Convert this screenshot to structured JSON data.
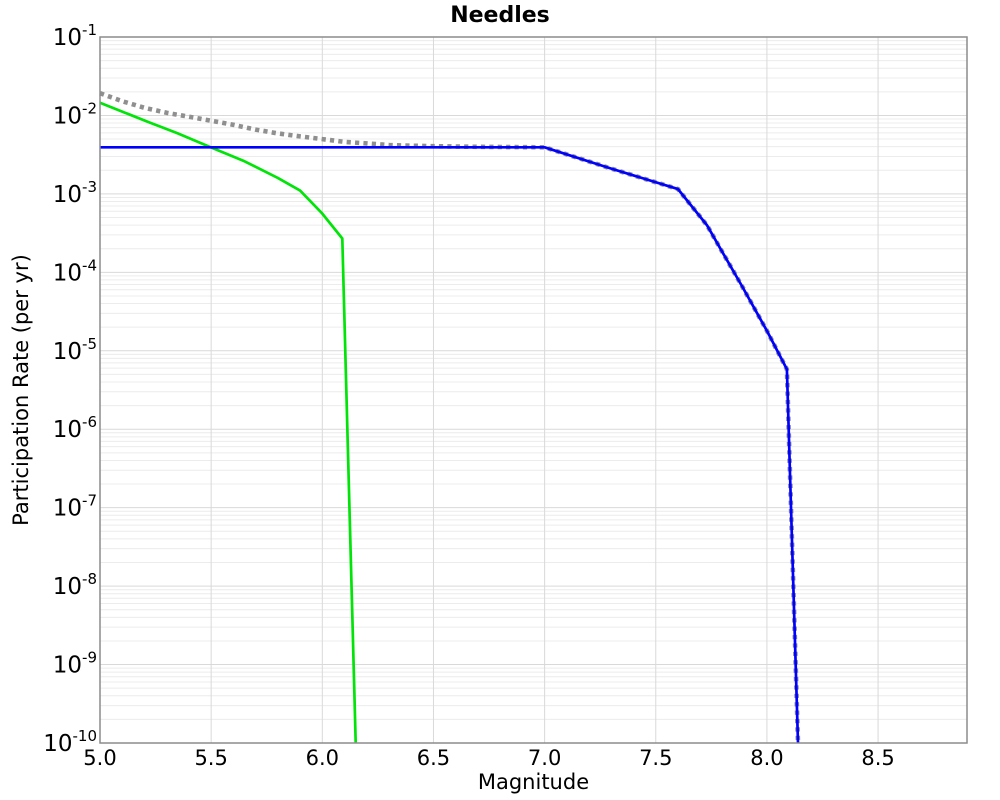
{
  "chart_data": {
    "type": "line",
    "title": "Needles",
    "xlabel": "Magnitude",
    "ylabel": "Participation Rate (per yr)",
    "legend": "none",
    "grid": {
      "major": true,
      "minor": true
    },
    "x_axis": {
      "min": 5.0,
      "max": 8.9,
      "major_ticks": [
        5.0,
        5.5,
        6.0,
        6.5,
        7.0,
        7.5,
        8.0,
        8.5
      ],
      "tick_labels": [
        "5.0",
        "5.5",
        "6.0",
        "6.5",
        "7.0",
        "7.5",
        "8.0",
        "8.5"
      ]
    },
    "y_axis": {
      "scale": "log",
      "min": 1e-10,
      "max": 0.1,
      "tick_base": "10",
      "tick_exponents": [
        -1,
        -2,
        -3,
        -4,
        -5,
        -6,
        -7,
        -8,
        -9,
        -10
      ]
    },
    "series": [
      {
        "name": "green-curve",
        "color": "#00e408",
        "style": "solid",
        "width": 2.7,
        "points": [
          [
            5.0,
            0.0145
          ],
          [
            5.1,
            0.0112
          ],
          [
            5.22,
            0.0082
          ],
          [
            5.35,
            0.0059
          ],
          [
            5.5,
            0.0039
          ],
          [
            5.65,
            0.0026
          ],
          [
            5.8,
            0.0016
          ],
          [
            5.9,
            0.0011
          ],
          [
            6.0,
            0.00056
          ],
          [
            6.09,
            0.00027
          ],
          [
            6.15,
            1e-10
          ]
        ]
      },
      {
        "name": "gray-dotted-curve",
        "color": "#8f8f8f",
        "style": "dotted",
        "width": 4.6,
        "points": [
          [
            5.0,
            0.0192
          ],
          [
            5.1,
            0.0152
          ],
          [
            5.2,
            0.0125
          ],
          [
            5.3,
            0.0108
          ],
          [
            5.45,
            0.0091
          ],
          [
            5.6,
            0.0076
          ],
          [
            5.7,
            0.0066
          ],
          [
            5.8,
            0.0059
          ],
          [
            5.9,
            0.0054
          ],
          [
            6.0,
            0.005
          ],
          [
            6.1,
            0.0046
          ],
          [
            6.2,
            0.0044
          ],
          [
            6.3,
            0.0042
          ],
          [
            6.4,
            0.00412
          ],
          [
            6.5,
            0.00405
          ],
          [
            6.65,
            0.00399
          ],
          [
            6.8,
            0.00396
          ],
          [
            7.0,
            0.00392
          ],
          [
            7.3,
            0.0021
          ],
          [
            7.6,
            0.00115
          ],
          [
            7.73,
            0.0004
          ],
          [
            7.8,
            0.00018
          ],
          [
            7.89,
            6.5e-05
          ],
          [
            8.0,
            1.8e-05
          ],
          [
            8.09,
            5.8e-06
          ],
          [
            8.14,
            1e-10
          ]
        ]
      },
      {
        "name": "blue-curve",
        "color": "#0000ff",
        "style": "solid",
        "width": 2.7,
        "points": [
          [
            5.0,
            0.00392
          ],
          [
            7.0,
            0.00392
          ],
          [
            7.3,
            0.0021
          ],
          [
            7.6,
            0.00115
          ],
          [
            7.73,
            0.0004
          ],
          [
            7.8,
            0.00018
          ],
          [
            7.89,
            6.5e-05
          ],
          [
            8.0,
            1.8e-05
          ],
          [
            8.09,
            5.8e-06
          ],
          [
            8.14,
            1e-10
          ]
        ]
      }
    ],
    "style": {
      "minor_grid_color": "#ececec",
      "major_grid_color": "#d9d9d9",
      "border_color": "#8c8c8c",
      "background": "#ffffff",
      "text_color": "#000000"
    }
  }
}
